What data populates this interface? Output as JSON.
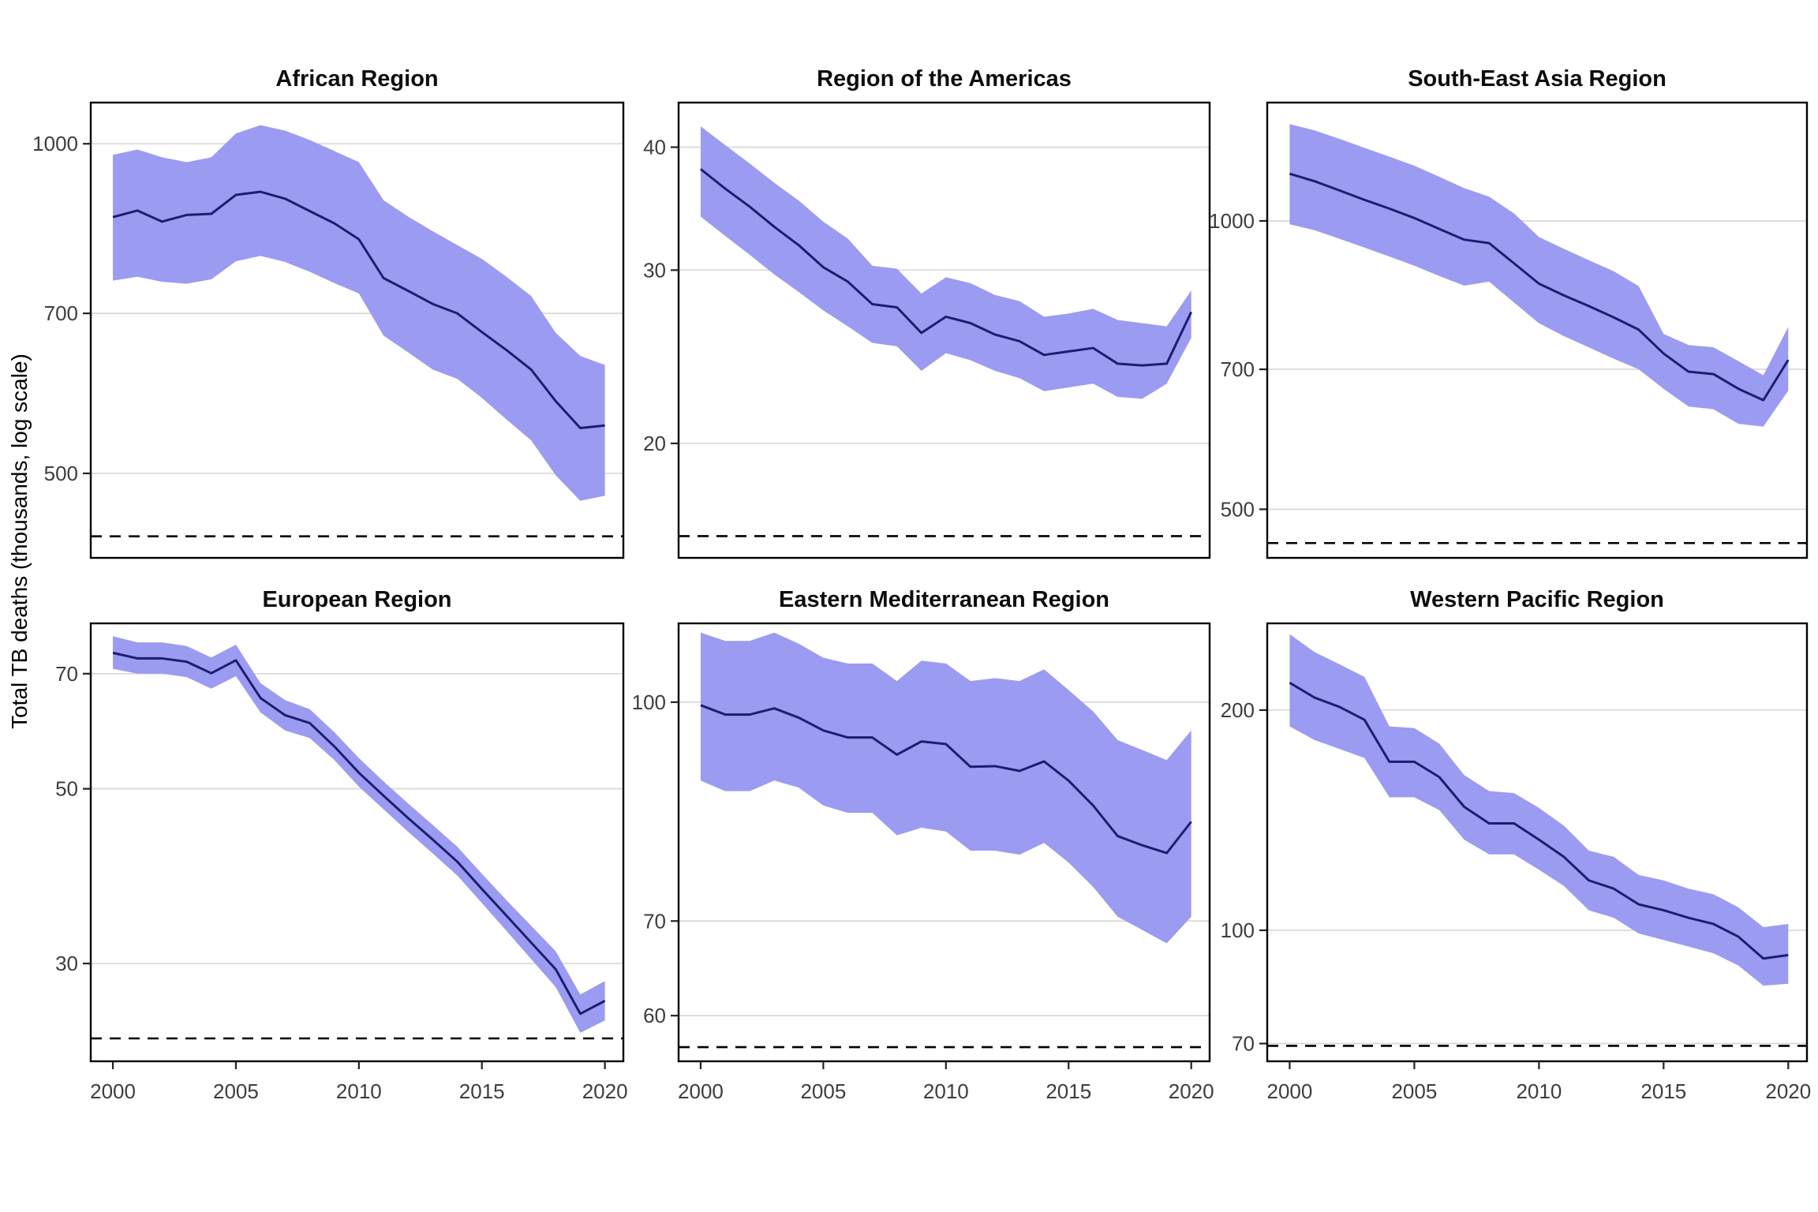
{
  "figure": {
    "ylabel": "Total TB deaths (thousands, log scale)"
  },
  "colors": {
    "ribbon": "#9b9bf2",
    "line": "#1d1d70",
    "gridline": "#d8d8d8",
    "border": "#000000",
    "dashed": "#000000",
    "tick_text": "#3d3d3d",
    "title_text": "#0d0d0d",
    "background": "#ffffff"
  },
  "chart_data": {
    "type": "line",
    "ylabel": "Total TB deaths (thousands, log scale)",
    "grid": "horizontal-only",
    "legend": "none",
    "years": [
      2000,
      2001,
      2002,
      2003,
      2004,
      2005,
      2006,
      2007,
      2008,
      2009,
      2010,
      2011,
      2012,
      2013,
      2014,
      2015,
      2016,
      2017,
      2018,
      2019,
      2020
    ],
    "x_label_ticks": [
      2000,
      2005,
      2010,
      2015,
      2020
    ],
    "xlim": [
      1999.1,
      2020.75
    ],
    "panels": [
      {
        "title": "African Region",
        "y_ticks": [
          1000,
          700,
          500
        ],
        "ylim": [
          418.6,
          1090.5
        ],
        "milestone": 438,
        "mid": [
          857,
          869,
          849,
          861,
          863,
          898,
          904,
          891,
          868,
          846,
          818,
          754,
          734,
          714,
          700,
          673,
          648,
          622,
          582,
          550,
          553
        ],
        "lower": [
          750,
          756,
          748,
          745,
          752,
          781,
          790,
          780,
          764,
          746,
          730,
          668,
          645,
          622,
          610,
          586,
          560,
          536,
          498,
          472,
          477
        ],
        "upper": [
          977,
          988,
          972,
          962,
          972,
          1022,
          1040,
          1028,
          1008,
          985,
          962,
          888,
          858,
          832,
          808,
          785,
          756,
          726,
          672,
          640,
          628
        ]
      },
      {
        "title": "Region of the Americas",
        "y_ticks": [
          40,
          30,
          20
        ],
        "ylim": [
          15.3,
          44.4
        ],
        "milestone": 16.1,
        "mid": [
          38.0,
          36.3,
          34.8,
          33.2,
          31.8,
          30.2,
          29.2,
          27.7,
          27.5,
          25.9,
          26.9,
          26.5,
          25.8,
          25.4,
          24.6,
          24.8,
          25.0,
          24.1,
          24.0,
          24.1,
          27.2
        ],
        "lower": [
          34.0,
          32.5,
          31.1,
          29.7,
          28.5,
          27.3,
          26.3,
          25.3,
          25.1,
          23.7,
          24.7,
          24.3,
          23.7,
          23.3,
          22.6,
          22.8,
          23.0,
          22.3,
          22.2,
          23.0,
          25.6
        ],
        "upper": [
          42.0,
          40.2,
          38.5,
          36.8,
          35.3,
          33.6,
          32.3,
          30.3,
          30.1,
          28.4,
          29.5,
          29.1,
          28.3,
          27.9,
          26.9,
          27.1,
          27.4,
          26.7,
          26.5,
          26.3,
          28.6
        ]
      },
      {
        "title": "South-East Asia Region",
        "y_ticks": [
          1000,
          700,
          500
        ],
        "ylim": [
          444.9,
          1329
        ],
        "milestone": 461,
        "mid": [
          1120,
          1100,
          1076,
          1052,
          1030,
          1007,
          981,
          956,
          948,
          903,
          860,
          836,
          815,
          793,
          770,
          727,
          696,
          692,
          668,
          650,
          716
        ],
        "lower": [
          992,
          978,
          958,
          938,
          918,
          898,
          876,
          856,
          864,
          822,
          782,
          758,
          738,
          718,
          700,
          668,
          640,
          636,
          614,
          610,
          665
        ],
        "upper": [
          1262,
          1243,
          1218,
          1192,
          1167,
          1142,
          1112,
          1082,
          1060,
          1018,
          962,
          935,
          910,
          886,
          855,
          762,
          742,
          738,
          714,
          690,
          775
        ]
      },
      {
        "title": "European Region",
        "y_ticks": [
          70,
          50,
          30
        ],
        "ylim": [
          22.54,
          81.1
        ],
        "milestone": 24.1,
        "mid": [
          74.4,
          73.2,
          73.2,
          72.5,
          70.1,
          72.8,
          65.2,
          62.0,
          60.6,
          56.6,
          52.4,
          49.0,
          45.9,
          43.1,
          40.4,
          37.3,
          34.5,
          31.9,
          29.5,
          25.9,
          26.9
        ],
        "lower": [
          71.0,
          70.0,
          70.0,
          69.3,
          67.0,
          69.5,
          62.5,
          59.3,
          58.0,
          54.4,
          50.3,
          47.1,
          44.1,
          41.4,
          38.8,
          35.8,
          33.0,
          30.4,
          28.0,
          24.5,
          25.4
        ],
        "upper": [
          78.1,
          76.7,
          76.7,
          75.9,
          73.4,
          76.2,
          68.1,
          64.8,
          63.1,
          59.0,
          54.7,
          51.1,
          47.9,
          45.0,
          42.2,
          39.0,
          36.1,
          33.5,
          31.1,
          27.4,
          28.5
        ]
      },
      {
        "title": "Eastern Mediterranean Region",
        "y_ticks": [
          100,
          70,
          60
        ],
        "ylim": [
          55.7,
          113.7
        ],
        "milestone": 57,
        "mid": [
          99.5,
          98.0,
          98.0,
          99.0,
          97.5,
          95.5,
          94.4,
          94.4,
          91.8,
          93.8,
          93.4,
          90.0,
          90.1,
          89.4,
          90.8,
          88.0,
          84.5,
          80.4,
          79.2,
          78.2,
          82.3
        ],
        "lower": [
          88.0,
          86.5,
          86.5,
          88.0,
          87.0,
          84.5,
          83.5,
          83.5,
          80.5,
          81.5,
          81.0,
          78.5,
          78.5,
          78.0,
          79.5,
          77.0,
          74.0,
          70.5,
          69.0,
          67.5,
          70.5
        ],
        "upper": [
          112.0,
          110.5,
          110.5,
          112.0,
          110.0,
          107.5,
          106.5,
          106.5,
          103.5,
          107.0,
          106.5,
          103.5,
          104.0,
          103.5,
          105.5,
          102.0,
          98.5,
          94.0,
          92.5,
          91.0,
          95.5
        ]
      },
      {
        "title": "Western Pacific Region",
        "y_ticks": [
          200,
          100,
          70
        ],
        "ylim": [
          66.2,
          262.8
        ],
        "milestone": 69.5,
        "mid": [
          218,
          208,
          202,
          194,
          170,
          170,
          162,
          147.5,
          140,
          140,
          133,
          126,
          117,
          114,
          108.5,
          106.5,
          104,
          102,
          98,
          91.5,
          92.5
        ],
        "lower": [
          190,
          182,
          177,
          172,
          152,
          152,
          146,
          133,
          127,
          127,
          121,
          115,
          106.5,
          104,
          99,
          97,
          95,
          93,
          89.5,
          84,
          84.5
        ],
        "upper": [
          254,
          240,
          231,
          222,
          190,
          189,
          180,
          163,
          155,
          154,
          147,
          139,
          128.5,
          126,
          119,
          117,
          114,
          112,
          107.5,
          101,
          102
        ]
      }
    ]
  }
}
